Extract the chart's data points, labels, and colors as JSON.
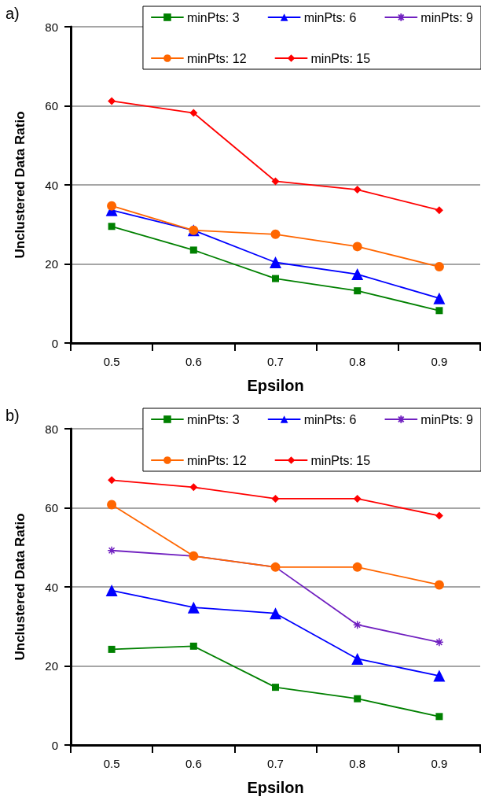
{
  "chart_data": [
    {
      "type": "line",
      "title": "a)",
      "xlabel": "Epsilon",
      "ylabel": "Unclustered Data Ratio",
      "categories": [
        "0.5",
        "0.6",
        "0.7",
        "0.8",
        "0.9"
      ],
      "ylim": [
        0,
        80
      ],
      "yticks": [
        0,
        20,
        40,
        60,
        80
      ],
      "grid": "y",
      "legend": "top right",
      "series": [
        {
          "name": "minPts: 3",
          "color": "#008000",
          "marker": "square",
          "values": [
            29.5,
            23.5,
            16.3,
            13.2,
            8.2
          ]
        },
        {
          "name": "minPts: 6",
          "color": "#0000ff",
          "marker": "triangle",
          "values": [
            33.6,
            28.5,
            20.4,
            17.4,
            11.3
          ]
        },
        {
          "name": "minPts: 9",
          "color": "#7020c0",
          "marker": "cross",
          "values": [
            null,
            null,
            null,
            null,
            null
          ]
        },
        {
          "name": "minPts: 12",
          "color": "#ff6600",
          "marker": "circle",
          "values": [
            34.7,
            28.5,
            27.5,
            24.4,
            19.3
          ]
        },
        {
          "name": "minPts: 15",
          "color": "#ff0000",
          "marker": "diamond",
          "values": [
            61.2,
            58.2,
            40.9,
            38.8,
            33.6
          ]
        }
      ]
    },
    {
      "type": "line",
      "title": "b)",
      "xlabel": "Epsilon",
      "ylabel": "Unclustered Data Ratio",
      "categories": [
        "0.5",
        "0.6",
        "0.7",
        "0.8",
        "0.9"
      ],
      "ylim": [
        0,
        80
      ],
      "yticks": [
        0,
        20,
        40,
        60,
        80
      ],
      "grid": "y",
      "legend": "top right",
      "series": [
        {
          "name": "minPts: 3",
          "color": "#008000",
          "marker": "square",
          "values": [
            24.2,
            25.0,
            14.6,
            11.7,
            7.2
          ]
        },
        {
          "name": "minPts: 6",
          "color": "#0000ff",
          "marker": "triangle",
          "values": [
            39.1,
            34.8,
            33.3,
            21.8,
            17.5
          ]
        },
        {
          "name": "minPts: 9",
          "color": "#7020c0",
          "marker": "cross",
          "values": [
            49.2,
            47.8,
            45.0,
            30.4,
            26.0
          ]
        },
        {
          "name": "minPts: 12",
          "color": "#ff6600",
          "marker": "circle",
          "values": [
            60.8,
            47.8,
            45.0,
            45.0,
            40.5
          ]
        },
        {
          "name": "minPts: 15",
          "color": "#ff0000",
          "marker": "diamond",
          "values": [
            67.0,
            65.2,
            62.3,
            62.3,
            58.0
          ]
        }
      ]
    }
  ]
}
